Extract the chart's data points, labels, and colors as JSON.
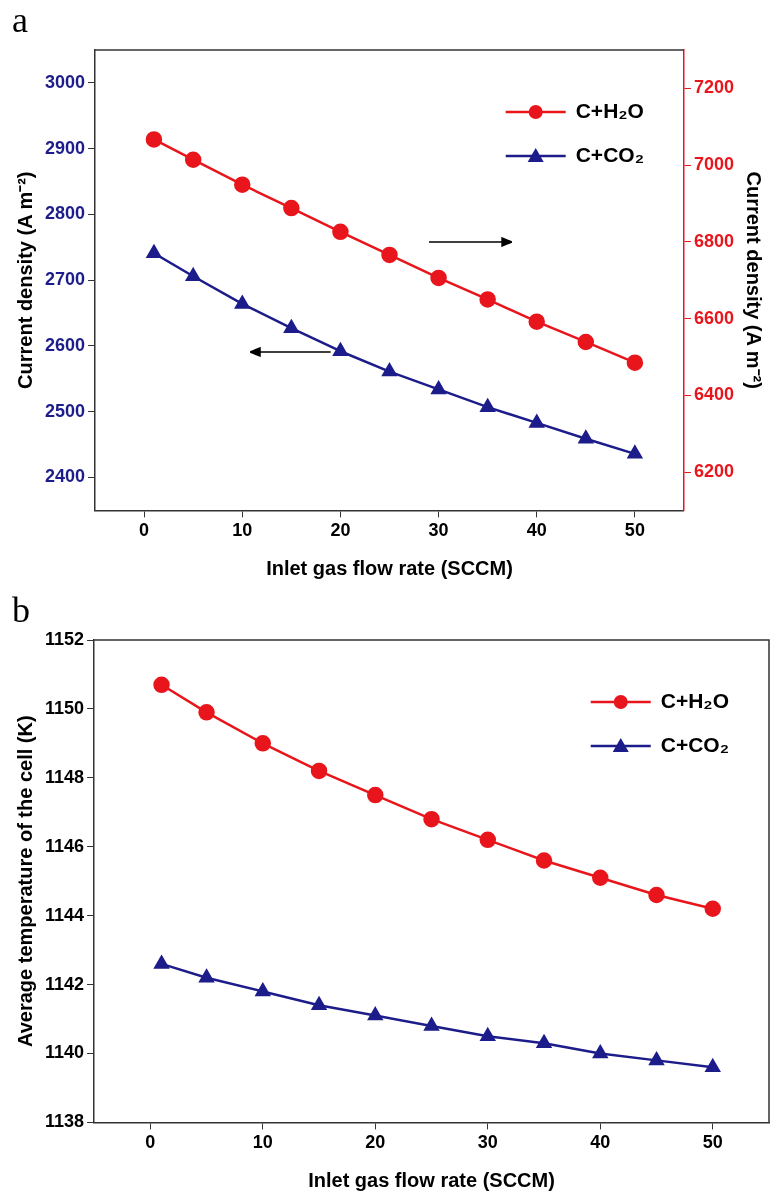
{
  "chart_data": [
    {
      "type": "line",
      "title": "a",
      "xlabel": "Inlet gas flow rate (SCCM)",
      "ylabel": "Current density (A m⁻²)",
      "y2label": "Current density (A m⁻²)",
      "x": [
        1,
        5,
        10,
        15,
        20,
        25,
        30,
        35,
        40,
        45,
        50
      ],
      "series": [
        {
          "name": "C+H₂O",
          "color": "#e8161c",
          "axis": "y2",
          "marker": "circle",
          "values": [
            7067,
            7014,
            6949,
            6888,
            6826,
            6766,
            6706,
            6650,
            6592,
            6539,
            6485
          ]
        },
        {
          "name": "C+CO₂",
          "color": "#1c1c8a",
          "axis": "y",
          "marker": "triangle",
          "values": [
            2741,
            2706,
            2664,
            2627,
            2592,
            2561,
            2534,
            2507,
            2483,
            2459,
            2436
          ]
        }
      ],
      "xlim": [
        -5,
        55
      ],
      "xticks": [
        0,
        10,
        20,
        30,
        40,
        50
      ],
      "ylim": [
        2350,
        3050
      ],
      "yticks": [
        2400,
        2500,
        2600,
        2700,
        2800,
        2900,
        3000
      ],
      "y2lim": [
        6100,
        7300
      ],
      "y2ticks": [
        6200,
        6400,
        6600,
        6800,
        7000,
        7200
      ],
      "legend": "top right"
    },
    {
      "type": "line",
      "title": "b",
      "xlabel": "Inlet gas flow rate (SCCM)",
      "ylabel": "Average temperature of the cell (K)",
      "x": [
        1,
        5,
        10,
        15,
        20,
        25,
        30,
        35,
        40,
        45,
        50
      ],
      "series": [
        {
          "name": "C+H₂O",
          "color": "#e8161c",
          "marker": "circle",
          "values": [
            1150.7,
            1149.9,
            1149.0,
            1148.2,
            1147.5,
            1146.8,
            1146.2,
            1145.6,
            1145.1,
            1144.6,
            1144.2
          ]
        },
        {
          "name": "C+CO₂",
          "color": "#1c1c8a",
          "marker": "triangle",
          "values": [
            1142.6,
            1142.2,
            1141.8,
            1141.4,
            1141.1,
            1140.8,
            1140.5,
            1140.3,
            1140.0,
            1139.8,
            1139.6
          ]
        }
      ],
      "xlim": [
        -5,
        55
      ],
      "xticks": [
        0,
        10,
        20,
        30,
        40,
        50
      ],
      "ylim": [
        1138,
        1152
      ],
      "yticks": [
        1138,
        1140,
        1142,
        1144,
        1146,
        1148,
        1150,
        1152
      ],
      "legend": "top right"
    }
  ]
}
